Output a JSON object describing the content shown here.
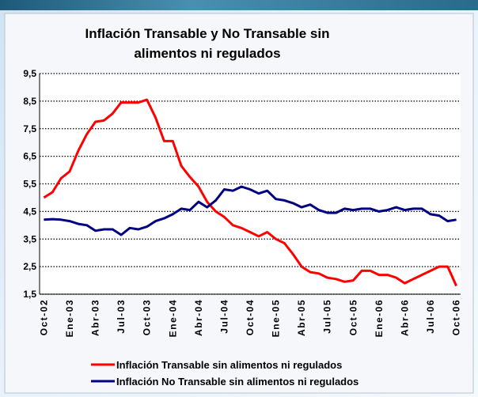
{
  "chart_data": {
    "type": "line",
    "title": "Inflación Transable y No Transable sin alimentos ni regulados",
    "categories": [
      "Oct-02",
      null,
      null,
      "Ene-03",
      null,
      null,
      "Abr-03",
      null,
      null,
      "Jul-03",
      null,
      null,
      "Oct-03",
      null,
      null,
      "Ene-04",
      null,
      null,
      "Abr-04",
      null,
      null,
      "Jul-04",
      null,
      null,
      "Oct-04",
      null,
      null,
      "Ene-05",
      null,
      null,
      "Abr-05",
      null,
      null,
      "Jul-05",
      null,
      null,
      "Oct-05",
      null,
      null,
      "Ene-06",
      null,
      null,
      "Abr-06",
      null,
      null,
      "Jul-06",
      null,
      null,
      "Oct-06"
    ],
    "series": [
      {
        "name": "Inflación Transable sin alimentos ni regulados",
        "color": "#ff0000",
        "values": [
          5.0,
          5.2,
          5.7,
          5.95,
          6.7,
          7.3,
          7.75,
          7.8,
          8.05,
          8.45,
          8.45,
          8.45,
          8.55,
          7.9,
          7.05,
          7.05,
          6.15,
          5.75,
          5.4,
          4.85,
          4.5,
          4.3,
          4.0,
          3.9,
          3.75,
          3.6,
          3.75,
          3.5,
          3.35,
          2.95,
          2.5,
          2.3,
          2.25,
          2.1,
          2.05,
          1.95,
          2.0,
          2.35,
          2.35,
          2.2,
          2.2,
          2.1,
          1.9,
          2.05,
          2.2,
          2.35,
          2.5,
          2.5,
          1.8
        ]
      },
      {
        "name": "Inflación No Transable sin alimentos ni regulados",
        "color": "#000080",
        "values": [
          4.2,
          4.22,
          4.2,
          4.15,
          4.05,
          4.0,
          3.8,
          3.85,
          3.85,
          3.65,
          3.9,
          3.85,
          3.95,
          4.15,
          4.25,
          4.4,
          4.6,
          4.55,
          4.85,
          4.65,
          4.9,
          5.3,
          5.25,
          5.4,
          5.3,
          5.15,
          5.25,
          4.95,
          4.9,
          4.8,
          4.65,
          4.75,
          4.55,
          4.45,
          4.45,
          4.6,
          4.55,
          4.6,
          4.6,
          4.5,
          4.55,
          4.65,
          4.55,
          4.6,
          4.6,
          4.4,
          4.35,
          4.15,
          4.2
        ]
      }
    ],
    "ylim": [
      1.5,
      9.5
    ],
    "yticks": [
      {
        "value": 1.5,
        "label": "1,5"
      },
      {
        "value": 2.5,
        "label": "2,5"
      },
      {
        "value": 3.5,
        "label": "3,5"
      },
      {
        "value": 4.5,
        "label": "4,5"
      },
      {
        "value": 5.5,
        "label": "5,5"
      },
      {
        "value": 6.5,
        "label": "6,5"
      },
      {
        "value": 7.5,
        "label": "7,5"
      },
      {
        "value": 8.5,
        "label": "8,5"
      },
      {
        "value": 9.5,
        "label": "9,5"
      }
    ],
    "grid": true,
    "legend": "bottom"
  }
}
